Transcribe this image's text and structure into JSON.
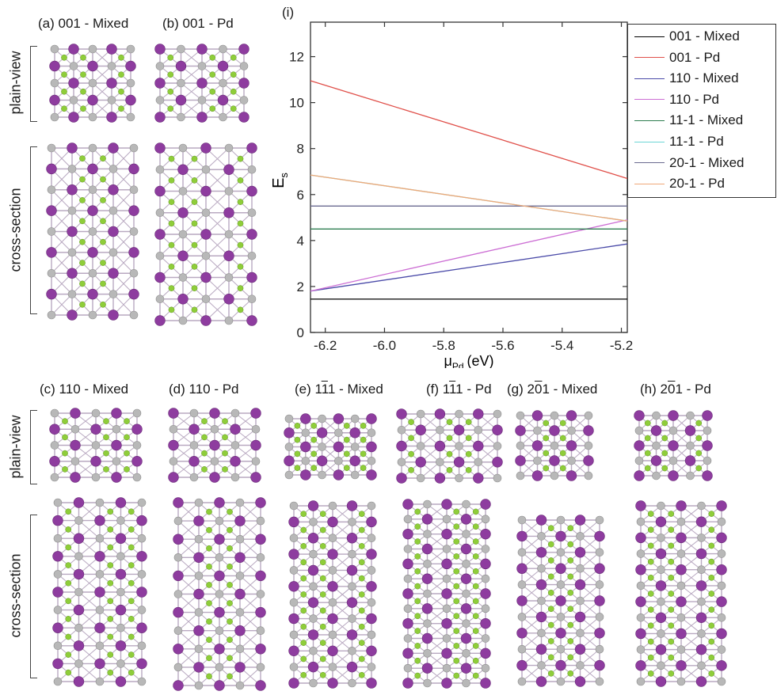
{
  "panels": {
    "a": "(a) 001 - Mixed",
    "b": "(b) 001 - Pd",
    "c": "(c) 110 - Mixed",
    "d": "(d) 110 - Pd",
    "e_prefix": "(e) 1",
    "e_bar": "1",
    "e_suffix": "1 - Mixed",
    "f_prefix": "(f) 1",
    "f_bar": "1",
    "f_suffix": "1 - Pd",
    "g_prefix": "(g) 2",
    "g_bar": "0",
    "g_suffix": "1 - Mixed",
    "h_prefix": "(h) 2",
    "h_bar": "0",
    "h_suffix": "1 - Pd",
    "i": "(i)"
  },
  "side_labels": {
    "plain_view": "plain-view",
    "cross_section": "cross-section"
  },
  "colors": {
    "pd_atom": "#8e3c9f",
    "se_atom": "#8fcd3a",
    "s_atom": "#b8b8b8",
    "bond": "#b9a9c1"
  },
  "chart_data": {
    "type": "line",
    "title": "",
    "xlabel": "μ",
    "xlabel_sub": "Pd",
    "xlabel_unit": "(eV)",
    "ylabel": "E",
    "ylabel_sub": "s",
    "xlim": [
      -6.25,
      -5.18
    ],
    "ylim": [
      0,
      13.5
    ],
    "xticks": [
      -6.2,
      -6.0,
      -5.8,
      -5.6,
      -5.4,
      -5.2
    ],
    "xtick_labels": [
      "-6.2",
      "-6.0",
      "-5.8",
      "-5.6",
      "-5.4",
      "-5.2"
    ],
    "yticks": [
      0,
      2,
      4,
      6,
      8,
      10,
      12
    ],
    "ytick_labels": [
      "0",
      "2",
      "4",
      "6",
      "8",
      "10",
      "12"
    ],
    "grid": false,
    "legend_position": "outside-right",
    "series": [
      {
        "name": "001 - Mixed",
        "color": "#000000",
        "x": [
          -6.25,
          -5.18
        ],
        "y": [
          1.45,
          1.45
        ]
      },
      {
        "name": "001 - Pd",
        "color": "#e0504a",
        "x": [
          -6.25,
          -5.18
        ],
        "y": [
          10.95,
          6.7
        ]
      },
      {
        "name": "110 - Mixed",
        "color": "#4a4aa8",
        "x": [
          -6.25,
          -5.18
        ],
        "y": [
          1.8,
          3.85
        ]
      },
      {
        "name": "110 - Pd",
        "color": "#cc6ed4",
        "x": [
          -6.25,
          -5.18
        ],
        "y": [
          1.8,
          4.9
        ]
      },
      {
        "name": "11-1 - Mixed",
        "color": "#2e7d50",
        "x": [
          -6.25,
          -5.18
        ],
        "y": [
          4.5,
          4.5
        ]
      },
      {
        "name": "11-1 - Pd",
        "color": "#6cd6d6",
        "x": [
          -6.25,
          -5.18
        ],
        "y": [
          6.85,
          4.85
        ]
      },
      {
        "name": "20-1 - Mixed",
        "color": "#6a6a90",
        "x": [
          -6.25,
          -5.18
        ],
        "y": [
          5.5,
          5.5
        ]
      },
      {
        "name": "20-1 - Pd",
        "color": "#f0a878",
        "x": [
          -6.25,
          -5.18
        ],
        "y": [
          6.85,
          4.85
        ]
      }
    ]
  }
}
